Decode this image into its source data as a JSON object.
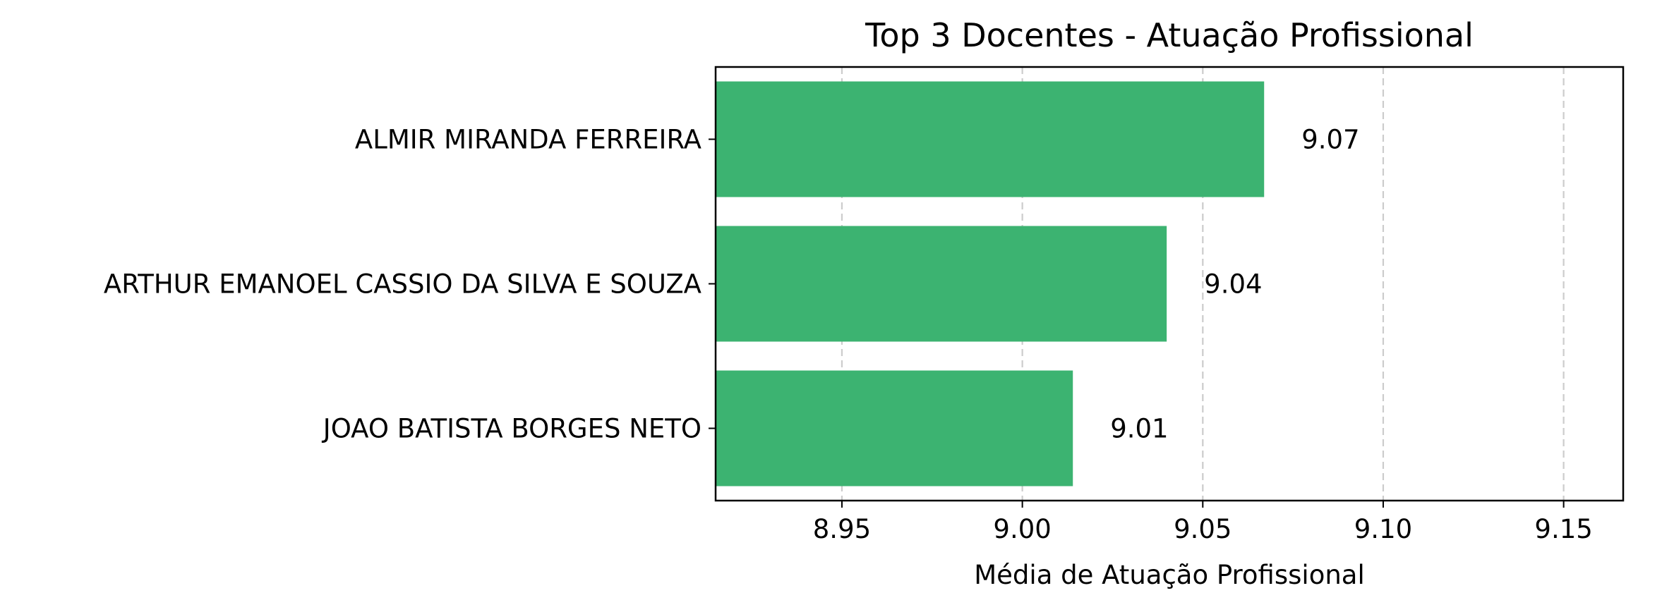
{
  "chart_data": {
    "type": "bar",
    "orientation": "horizontal",
    "title": "Top 3 Docentes - Atuação Profissional",
    "xlabel": "Média de Atuação Profissional",
    "ylabel": "",
    "categories": [
      "ALMIR MIRANDA FERREIRA",
      "ARTHUR EMANOEL CASSIO DA SILVA E SOUZA",
      "JOAO BATISTA BORGES NETO"
    ],
    "values": [
      9.067,
      9.04,
      9.014
    ],
    "value_labels": [
      "9.07",
      "9.04",
      "9.01"
    ],
    "xlim": [
      8.915,
      9.1665
    ],
    "xticks": [
      8.95,
      9.0,
      9.05,
      9.1,
      9.15
    ],
    "xtick_labels": [
      "8.95",
      "9.00",
      "9.05",
      "9.10",
      "9.15"
    ],
    "grid": {
      "x": true,
      "y": false,
      "style": "dashed"
    },
    "bar_color": "#3cb371"
  }
}
